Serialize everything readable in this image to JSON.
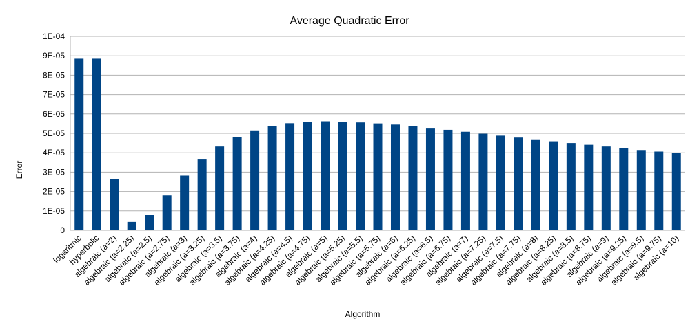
{
  "chart_data": {
    "type": "bar",
    "title": "Average Quadratic Error",
    "xlabel": "Algorithm",
    "ylabel": "Error",
    "ylim": [
      0,
      0.0001
    ],
    "yticks": [
      "0",
      "1E-05",
      "2E-05",
      "3E-05",
      "4E-05",
      "5E-05",
      "6E-05",
      "7E-05",
      "8E-05",
      "9E-05",
      "1E-04"
    ],
    "grid": true,
    "legend": "none",
    "color": "#004586",
    "categories": [
      "logaritmic",
      "hyperbolic",
      "algebraic (a=2)",
      "algebraic (a=2.25)",
      "algebraic (a=2.5)",
      "algebraic (a=2.75)",
      "algebraic (a=3)",
      "algebraic (a=3.25)",
      "algebraic (a=3.5)",
      "algebraic (a=3.75)",
      "algebraic (a=4)",
      "algebraic (a=4.25)",
      "algebraic (a=4.5)",
      "algebraic (a=4.75)",
      "algebraic (a=5)",
      "algebraic (a=5.25)",
      "algebraic (a=5.5)",
      "algebraic (a=5.75)",
      "algebraic (a=6)",
      "algebraic (a=6.25)",
      "algebraic (a=6.5)",
      "algebraic (a=6.75)",
      "algebraic (a=7)",
      "algebraic (a=7.25)",
      "algebraic (a=7.5)",
      "algebraic (a=7.75)",
      "algebraic (a=8)",
      "algebraic (a=8.25)",
      "algebraic (a=8.5)",
      "algebraic (a=8.75)",
      "algebraic (a=9)",
      "algebraic (a=9.25)",
      "algebraic (a=9.5)",
      "algebraic (a=9.75)",
      "algebraic (a=10)"
    ],
    "values": [
      8.85e-05,
      8.85e-05,
      2.65e-05,
      4.3e-06,
      7.8e-06,
      1.8e-05,
      2.82e-05,
      3.65e-05,
      4.32e-05,
      4.8e-05,
      5.15e-05,
      5.38e-05,
      5.52e-05,
      5.6e-05,
      5.62e-05,
      5.6e-05,
      5.56e-05,
      5.51e-05,
      5.45e-05,
      5.37e-05,
      5.28e-05,
      5.18e-05,
      5.08e-05,
      4.98e-05,
      4.88e-05,
      4.78e-05,
      4.69e-05,
      4.59e-05,
      4.5e-05,
      4.41e-05,
      4.32e-05,
      4.23e-05,
      4.14e-05,
      4.06e-05,
      3.98e-05
    ]
  }
}
